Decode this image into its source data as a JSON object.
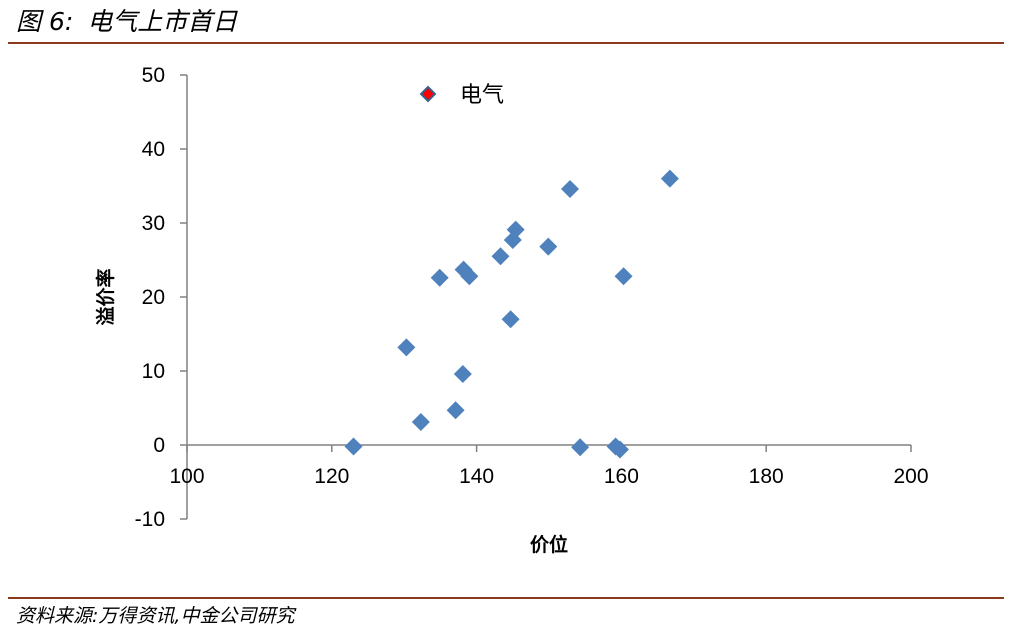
{
  "header": {
    "figure_label": "图 6:",
    "title": "电气上市首日"
  },
  "footer": {
    "source": "资料来源:万得资讯,中金公司研究"
  },
  "colors": {
    "rule": "#8b3a1e",
    "marker_fill": "#4f81bd",
    "legend_marker_fill": "#ff0000",
    "legend_marker_stroke": "#3a5f8f",
    "axis": "#808080"
  },
  "chart_data": {
    "type": "scatter",
    "xlabel": "价位",
    "ylabel": "溢价率",
    "xlim": [
      100,
      200
    ],
    "ylim": [
      -10,
      50
    ],
    "xticks": [
      100,
      120,
      140,
      160,
      180,
      200
    ],
    "yticks": [
      -10,
      0,
      10,
      20,
      30,
      40,
      50
    ],
    "legend_position": "top-center",
    "grid": false,
    "series": [
      {
        "name": "电气",
        "points": [
          {
            "x": 123.0,
            "y": -0.2
          },
          {
            "x": 130.3,
            "y": 13.2
          },
          {
            "x": 132.3,
            "y": 3.1
          },
          {
            "x": 134.9,
            "y": 22.6
          },
          {
            "x": 137.1,
            "y": 4.7
          },
          {
            "x": 138.1,
            "y": 9.6
          },
          {
            "x": 138.2,
            "y": 23.7
          },
          {
            "x": 139.0,
            "y": 22.8
          },
          {
            "x": 143.3,
            "y": 25.5
          },
          {
            "x": 144.7,
            "y": 17.0
          },
          {
            "x": 145.0,
            "y": 27.7
          },
          {
            "x": 145.4,
            "y": 29.1
          },
          {
            "x": 149.9,
            "y": 26.8
          },
          {
            "x": 152.9,
            "y": 34.6
          },
          {
            "x": 154.3,
            "y": -0.3
          },
          {
            "x": 159.2,
            "y": -0.2
          },
          {
            "x": 159.8,
            "y": -0.6
          },
          {
            "x": 160.3,
            "y": 22.8
          },
          {
            "x": 166.7,
            "y": 36.0
          }
        ]
      }
    ]
  }
}
